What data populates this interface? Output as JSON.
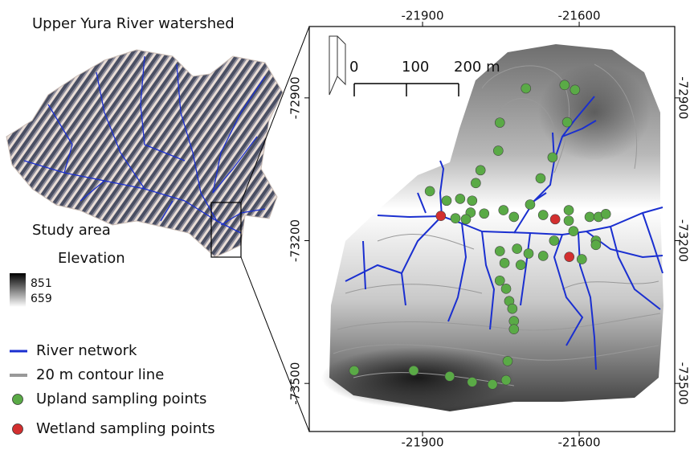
{
  "title": "Upper Yura River watershed",
  "legend": {
    "heading": "Study area",
    "elevation": {
      "title": "Elevation",
      "max": 851,
      "min": 659
    },
    "items": [
      {
        "label": "River network",
        "color": "#1a2fd0"
      },
      {
        "label": "20 m contour line",
        "color": "#999999"
      },
      {
        "label": "Upland sampling points",
        "color": "#5aaa46"
      },
      {
        "label": "Wetland sampling points",
        "color": "#d32f2f"
      }
    ]
  },
  "map": {
    "xlim": [
      -22117,
      -21417
    ],
    "ylim": [
      -73601,
      -72750
    ],
    "xticks": [
      -21900,
      -21600
    ],
    "yticks": [
      -72900,
      -73200,
      -73500
    ],
    "scale_bar": [
      0,
      100,
      {
        "value": 200,
        "label": "200 m"
      }
    ],
    "upland": {
      "x": [
        -21702,
        -21628,
        -21608,
        -21752,
        -21623,
        -21651,
        -21755,
        -21789,
        -21798,
        -21674,
        -21886,
        -21854,
        -21828,
        -21805,
        -21808,
        -21782,
        -21837,
        -21817,
        -21745,
        -21725,
        -21694,
        -21669,
        -21620,
        -21620,
        -21580,
        -21563,
        -21549,
        -21648,
        -21611,
        -21568,
        -21568,
        -21595,
        -21752,
        -21743,
        -21719,
        -21697,
        -21712,
        -21669,
        -21752,
        -21740,
        -21734,
        -21728,
        -21725,
        -21725,
        -21737,
        -22031,
        -21917,
        -21848,
        -21805,
        -21766,
        -21740
      ],
      "y": [
        -72880,
        -72873,
        -72883,
        -72952,
        -72951,
        -73025,
        -73011,
        -73052,
        -73079,
        -73069,
        -73096,
        -73116,
        -73112,
        -73116,
        -73141,
        -73143,
        -73153,
        -73155,
        -73136,
        -73150,
        -73124,
        -73146,
        -73136,
        -73158,
        -73150,
        -73150,
        -73144,
        -73200,
        -73180,
        -73200,
        -73209,
        -73239,
        -73222,
        -73247,
        -73217,
        -73227,
        -73251,
        -73232,
        -73284,
        -73301,
        -73327,
        -73343,
        -73369,
        -73386,
        -73453,
        -73473,
        -73473,
        -73485,
        -73497,
        -73502,
        -73493
      ]
    },
    "wetland": {
      "x": [
        -21865,
        -21646,
        -21619
      ],
      "y": [
        -73148,
        -73155,
        -73234
      ]
    }
  }
}
